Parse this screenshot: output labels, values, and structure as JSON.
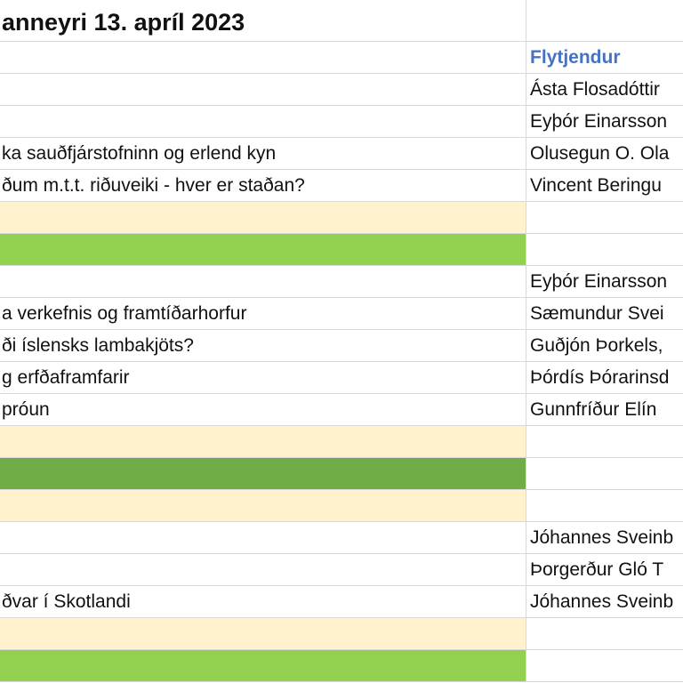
{
  "sheet": {
    "title": "anneyri 13. apríl 2023",
    "colors": {
      "header_blue": "#4472C4",
      "break_yellow": "#FFF2CC",
      "light_green": "#92D050",
      "dark_green": "#70AD47"
    },
    "rows": [
      {
        "a": "",
        "b": "Flytjendur",
        "fill": "",
        "header": true
      },
      {
        "a": "",
        "b": "Ásta Flosadóttir",
        "fill": ""
      },
      {
        "a": "",
        "b": "Eyþór Einarsson",
        "fill": ""
      },
      {
        "a": "ka sauðfjárstofninn og erlend kyn",
        "b": "Olusegun O. Ola",
        "fill": ""
      },
      {
        "a": "ðum m.t.t. riðuveiki - hver er staðan?",
        "b": "Vincent Beringu",
        "fill": ""
      },
      {
        "a": "",
        "b": "",
        "fill": "#FFF2CC"
      },
      {
        "a": "",
        "b": "",
        "fill": "#92D050"
      },
      {
        "a": "",
        "b": "Eyþór Einarsson",
        "fill": ""
      },
      {
        "a": "a verkefnis og framtíðarhorfur",
        "b": "Sæmundur Svei",
        "fill": ""
      },
      {
        "a": "ði íslensks lambakjöts?",
        "b": "Guðjón Þorkels,",
        "fill": ""
      },
      {
        "a": "g erfðaframfarir",
        "b": "Þórdís Þórarinsd",
        "fill": ""
      },
      {
        "a": "próun",
        "b": "Gunnfríður Elín",
        "fill": ""
      },
      {
        "a": "",
        "b": "",
        "fill": "#FFF2CC"
      },
      {
        "a": "",
        "b": "",
        "fill": "#70AD47"
      },
      {
        "a": "",
        "b": "",
        "fill": "#FFF2CC"
      },
      {
        "a": "",
        "b": "Jóhannes Sveinb",
        "fill": ""
      },
      {
        "a": "",
        "b": "Þorgerður Gló T",
        "fill": ""
      },
      {
        "a": "ðvar í Skotlandi",
        "b": "Jóhannes Sveinb",
        "fill": ""
      },
      {
        "a": "",
        "b": "",
        "fill": "#FFF2CC"
      },
      {
        "a": "",
        "b": "",
        "fill": "#92D050"
      }
    ]
  }
}
